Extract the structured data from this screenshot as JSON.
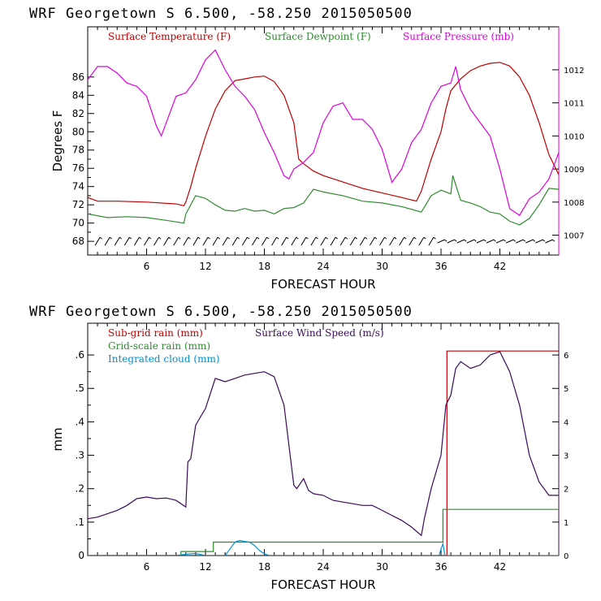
{
  "chart_data": [
    {
      "type": "line",
      "title": "WRF   Georgetown S   6.500, -58.250  2015050500",
      "xlabel": "FORECAST HOUR",
      "ylabel": "Degrees F",
      "y2label": "",
      "xlim": [
        0,
        48
      ],
      "ylim": [
        66.5,
        91.5
      ],
      "y2lim": [
        1006.4,
        1013.3
      ],
      "x_ticks": [
        6,
        12,
        18,
        24,
        30,
        36,
        42
      ],
      "y_ticks": [
        68,
        70,
        72,
        74,
        76,
        78,
        80,
        82,
        84,
        86
      ],
      "y2_ticks": [
        1007,
        1008,
        1009,
        1010,
        1011,
        1012
      ],
      "grid": false,
      "legend_placement": "top",
      "wind_barbs_row": true,
      "series": [
        {
          "name": "Surface Temperature (F)",
          "color": "#c00000",
          "axis": "left",
          "x": [
            0,
            1,
            3,
            6,
            9,
            9.8,
            10,
            10.5,
            11,
            12,
            13,
            14,
            15,
            16,
            17,
            18,
            19,
            20,
            21,
            21.5,
            22,
            23,
            24,
            26,
            28,
            30,
            32,
            33.5,
            34,
            35,
            36,
            36.5,
            37,
            38,
            39,
            40,
            41,
            42,
            43,
            44,
            45,
            46,
            47,
            48
          ],
          "values": [
            72.8,
            72.4,
            72.4,
            72.3,
            72.1,
            71.9,
            72.3,
            74.0,
            76.0,
            79.5,
            82.5,
            84.5,
            85.6,
            85.8,
            86.0,
            86.1,
            85.5,
            84.0,
            81.0,
            77.0,
            76.5,
            75.7,
            75.2,
            74.5,
            73.8,
            73.3,
            72.8,
            72.4,
            73.5,
            77.0,
            80.0,
            82.5,
            84.5,
            85.8,
            86.7,
            87.2,
            87.5,
            87.6,
            87.2,
            86.0,
            84.0,
            81.0,
            77.5,
            75.3
          ]
        },
        {
          "name": "Surface Dewpoint (F)",
          "color": "#2e8b2e",
          "axis": "left",
          "x": [
            0,
            2,
            4,
            6,
            8,
            9.8,
            10,
            11,
            12,
            13,
            14,
            15,
            16,
            17,
            18,
            19,
            20,
            21,
            22,
            23,
            24,
            26,
            28,
            30,
            32,
            34,
            35,
            36,
            37,
            37.2,
            38,
            39,
            40,
            41,
            42,
            43,
            44,
            45,
            46,
            47,
            48
          ],
          "values": [
            71.0,
            70.6,
            70.7,
            70.6,
            70.3,
            70.0,
            71.0,
            73.0,
            72.7,
            72.0,
            71.4,
            71.3,
            71.6,
            71.3,
            71.4,
            71.0,
            71.6,
            71.7,
            72.2,
            73.7,
            73.4,
            73.0,
            72.4,
            72.2,
            71.8,
            71.2,
            73.0,
            73.6,
            73.2,
            75.2,
            72.5,
            72.2,
            71.8,
            71.2,
            71.0,
            70.2,
            69.8,
            70.5,
            72.0,
            73.8,
            73.7
          ]
        },
        {
          "name": "Surface Pressure (mb)",
          "color": "#dd00dd",
          "axis": "right",
          "x": [
            0,
            1,
            2,
            3,
            4,
            5,
            6,
            7,
            7.5,
            8,
            9,
            10,
            11,
            12,
            13,
            14,
            15,
            16,
            17,
            18,
            19,
            20,
            20.5,
            21,
            22,
            23,
            24,
            25,
            26,
            27,
            28,
            29,
            30,
            31,
            32,
            33,
            34,
            35,
            36,
            37,
            37.5,
            38,
            39,
            40,
            41,
            42,
            43,
            44,
            45,
            46,
            47,
            48
          ],
          "values": [
            1011.7,
            1012.1,
            1012.1,
            1011.9,
            1011.6,
            1011.5,
            1011.2,
            1010.3,
            1010.0,
            1010.4,
            1011.2,
            1011.3,
            1011.7,
            1012.3,
            1012.6,
            1012.0,
            1011.5,
            1011.2,
            1010.8,
            1010.1,
            1009.5,
            1008.8,
            1008.7,
            1009.0,
            1009.2,
            1009.5,
            1010.4,
            1010.9,
            1011.0,
            1010.5,
            1010.5,
            1010.2,
            1009.6,
            1008.6,
            1009.0,
            1009.8,
            1010.2,
            1011.0,
            1011.5,
            1011.6,
            1012.1,
            1011.4,
            1010.8,
            1010.4,
            1010.0,
            1009.0,
            1007.8,
            1007.6,
            1008.1,
            1008.3,
            1008.7,
            1009.5
          ]
        }
      ]
    },
    {
      "type": "line",
      "title": "WRF   Georgetown S   6.500, -58.250  2015050500",
      "xlabel": "FORECAST HOUR",
      "ylabel": "mm",
      "y2label": "",
      "xlim": [
        0,
        48
      ],
      "ylim": [
        0,
        0.695
      ],
      "y2lim": [
        0,
        6.95
      ],
      "x_ticks": [
        6,
        12,
        18,
        24,
        30,
        36,
        42
      ],
      "y_ticks": [
        0,
        0.1,
        0.2,
        0.3,
        0.4,
        0.5,
        0.6
      ],
      "y_tick_labels": [
        "0",
        ".1",
        ".2",
        ".3",
        ".4",
        ".5",
        ".6"
      ],
      "y2_ticks": [
        0,
        1,
        2,
        3,
        4,
        5,
        6
      ],
      "grid": false,
      "legend_placement": "top",
      "series": [
        {
          "name": "Sub-grid rain (mm)",
          "color": "#c00000",
          "axis": "left",
          "step": true,
          "x": [
            0,
            36.6,
            36.6,
            48
          ],
          "values": [
            0,
            0,
            0.612,
            0.612
          ]
        },
        {
          "name": "Grid-scale rain (mm)",
          "color": "#2e8b2e",
          "axis": "left",
          "step": true,
          "x": [
            0,
            9.5,
            9.5,
            12.8,
            12.8,
            36.2,
            36.2,
            48
          ],
          "values": [
            0,
            0,
            0.012,
            0.012,
            0.04,
            0.04,
            0.138,
            0.138
          ]
        },
        {
          "name": "Integrated cloud (mm)",
          "color": "#0090d0",
          "axis": "left",
          "x": [
            0,
            9.0,
            10.0,
            11.0,
            12.0,
            14.0,
            14.5,
            15.0,
            15.5,
            16.0,
            16.5,
            17.0,
            17.5,
            18.0,
            18.5,
            20.0,
            35.8,
            36.0,
            36.2,
            36.4,
            48
          ],
          "values": [
            0,
            0,
            0.004,
            0.006,
            0,
            0,
            0.02,
            0.04,
            0.045,
            0.042,
            0.04,
            0.03,
            0.015,
            0.005,
            0,
            0,
            0,
            0.02,
            0.035,
            0,
            0
          ]
        },
        {
          "name": "Surface Wind Speed (m/s)",
          "color": "#3a0a5a",
          "axis": "right",
          "x": [
            0,
            1,
            2,
            3,
            4,
            5,
            6,
            7,
            8,
            9,
            10,
            10.2,
            10.5,
            11,
            12,
            13,
            14,
            15,
            16,
            17,
            18,
            19,
            20,
            21,
            21.3,
            22,
            22.5,
            23,
            24,
            25,
            26,
            27,
            28,
            29,
            30,
            31,
            32,
            33,
            34,
            34.3,
            35,
            36,
            36.5,
            37,
            37.5,
            38,
            39,
            40,
            41,
            42,
            43,
            44,
            45,
            46,
            47,
            48
          ],
          "values": [
            1.1,
            1.15,
            1.25,
            1.35,
            1.5,
            1.7,
            1.75,
            1.7,
            1.72,
            1.65,
            1.45,
            2.8,
            2.9,
            3.9,
            4.4,
            5.3,
            5.2,
            5.3,
            5.4,
            5.45,
            5.5,
            5.35,
            4.5,
            2.1,
            2.0,
            2.3,
            1.95,
            1.85,
            1.8,
            1.65,
            1.6,
            1.55,
            1.5,
            1.5,
            1.35,
            1.2,
            1.05,
            0.85,
            0.6,
            1.1,
            2.0,
            3.0,
            4.5,
            4.8,
            5.6,
            5.8,
            5.6,
            5.7,
            6.0,
            6.1,
            5.5,
            4.5,
            3.0,
            2.2,
            1.8,
            1.8
          ]
        }
      ]
    }
  ]
}
